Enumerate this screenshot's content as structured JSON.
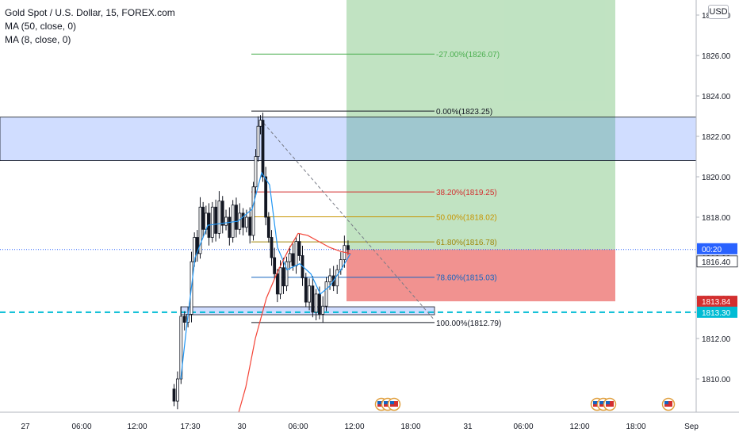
{
  "legend": {
    "symbol": "Gold Spot / U.S. Dollar, 15, FOREX.com",
    "ma1": "MA (50, close, 0)",
    "ma2": "MA (8, close, 0)"
  },
  "currency": "USD",
  "chart_data": {
    "type": "candlestick",
    "price_axis": {
      "ticks": [
        1810,
        1812,
        1814,
        1816,
        1818,
        1820,
        1822,
        1824,
        1826,
        1828
      ],
      "tick_labels": [
        "1810.00",
        "1812.00",
        "1814.00",
        "1816.00",
        "1818.00",
        "1820.00",
        "1822.00",
        "1824.00",
        "1826.00",
        "1828.00"
      ]
    },
    "time_axis": {
      "labels": [
        "27",
        "06:00",
        "12:00",
        "17:30",
        "30",
        "06:00",
        "12:00",
        "18:00",
        "31",
        "06:00",
        "12:00",
        "18:00",
        "Sep"
      ]
    },
    "price_markers": [
      {
        "label": "00:20",
        "color": "#2962ff",
        "kind": "countdown"
      },
      {
        "label": "1816.40",
        "color": "#131722",
        "kind": "last"
      },
      {
        "label": "1813.84",
        "color": "#d32f2f",
        "kind": "stop"
      },
      {
        "label": "1813.30",
        "color": "#00bcd4",
        "kind": "line"
      }
    ],
    "fibonacci": [
      {
        "label": "-27.00%(1826.07)",
        "price": 1826.07,
        "color": "#4caf50"
      },
      {
        "label": "0.00%(1823.25)",
        "price": 1823.25,
        "color": "#131722"
      },
      {
        "label": "38.20%(1819.25)",
        "price": 1819.25,
        "color": "#d32f2f"
      },
      {
        "label": "50.00%(1818.02)",
        "price": 1818.02,
        "color": "#c79400"
      },
      {
        "label": "61.80%(1816.78)",
        "price": 1816.78,
        "color": "#a0880a"
      },
      {
        "label": "78.60%(1815.03)",
        "price": 1815.03,
        "color": "#1565c0"
      },
      {
        "label": "100.00%(1812.79)",
        "price": 1812.79,
        "color": "#131722"
      }
    ],
    "zones": {
      "resistance": [
        1820.8,
        1822.95
      ],
      "support": [
        1813.25,
        1813.45
      ],
      "target": [
        1816.4,
        1828.5
      ],
      "stop": [
        1813.84,
        1816.4
      ]
    },
    "price_line": 1816.4,
    "dashed_line": 1813.3,
    "series": [
      {
        "name": "MA (50, close, 0)",
        "color": "#f44336"
      },
      {
        "name": "MA (8, close, 0)",
        "color": "#2196f3"
      }
    ],
    "candle_colors": {
      "up": "#131722",
      "down": "#131722"
    }
  }
}
